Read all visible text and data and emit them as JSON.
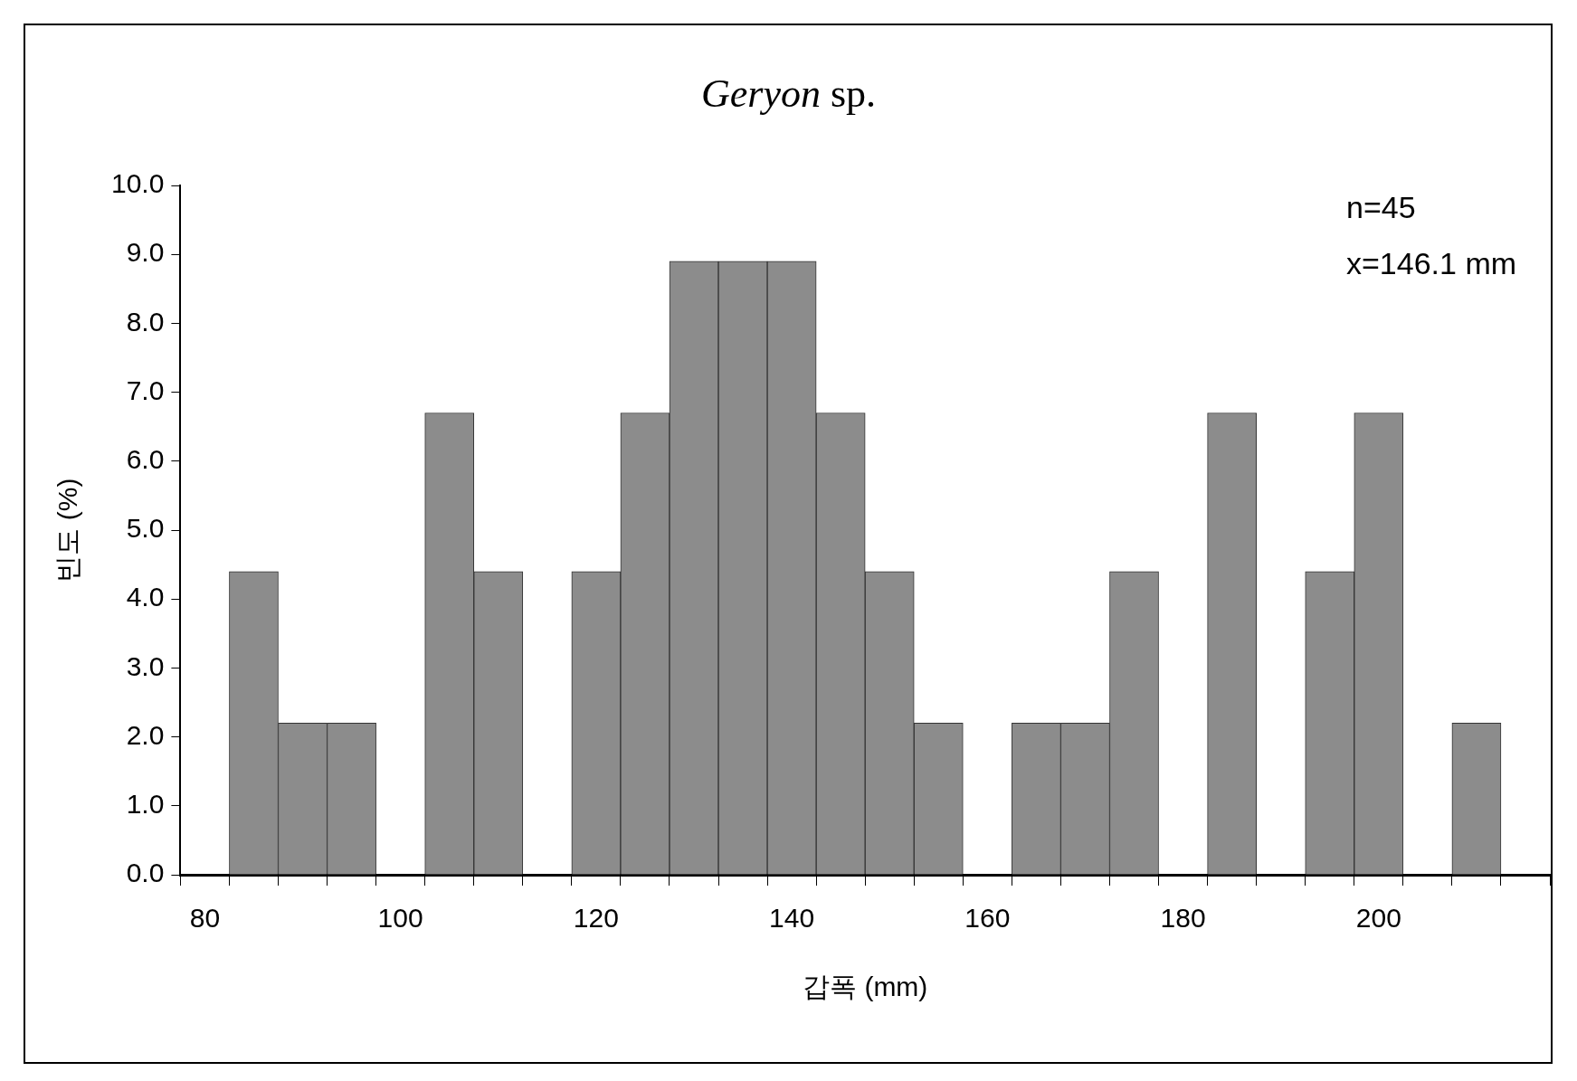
{
  "chart_data": {
    "type": "histogram",
    "title": "Geryon sp.",
    "xlabel": "갑폭 (mm)",
    "ylabel": "빈도 (%)",
    "bins": [
      82.5,
      87.5,
      92.5,
      97.5,
      102.5,
      107.5,
      112.5,
      117.5,
      122.5,
      127.5,
      132.5,
      137.5,
      142.5,
      147.5,
      152.5,
      157.5,
      162.5,
      167.5,
      172.5,
      177.5,
      182.5,
      187.5,
      192.5,
      197.5,
      202.5,
      207.5,
      212.5
    ],
    "values": [
      4.4,
      2.2,
      2.2,
      0,
      6.7,
      4.4,
      0,
      4.4,
      6.7,
      8.9,
      8.9,
      8.9,
      6.7,
      4.4,
      2.2,
      0,
      2.2,
      2.2,
      4.4,
      0,
      6.7,
      0,
      4.4,
      6.7,
      0,
      2.2
    ],
    "color": "#8c8c8c",
    "xlim": [
      77.5,
      217.5
    ],
    "xticks": [
      {
        "value": 77.5,
        "label": null
      },
      80,
      {
        "value": 82.5,
        "label": null
      },
      {
        "value": 87.5,
        "label": null
      },
      {
        "value": 92.5,
        "label": null
      },
      {
        "value": 97.5,
        "label": null
      },
      100,
      {
        "value": 102.5,
        "label": null
      },
      {
        "value": 107.5,
        "label": null
      },
      {
        "value": 112.5,
        "label": null
      },
      {
        "value": 117.5,
        "label": null
      },
      120,
      {
        "value": 122.5,
        "label": null
      },
      {
        "value": 127.5,
        "label": null
      },
      {
        "value": 132.5,
        "label": null
      },
      {
        "value": 137.5,
        "label": null
      },
      140,
      {
        "value": 142.5,
        "label": null
      },
      {
        "value": 147.5,
        "label": null
      },
      {
        "value": 152.5,
        "label": null
      },
      {
        "value": 157.5,
        "label": null
      },
      160,
      {
        "value": 162.5,
        "label": null
      },
      {
        "value": 167.5,
        "label": null
      },
      {
        "value": 172.5,
        "label": null
      },
      {
        "value": 177.5,
        "label": null
      },
      180,
      {
        "value": 182.5,
        "label": null
      },
      {
        "value": 187.5,
        "label": null
      },
      {
        "value": 192.5,
        "label": null
      },
      {
        "value": 197.5,
        "label": null
      },
      200,
      {
        "value": 202.5,
        "label": null
      },
      {
        "value": 207.5,
        "label": null
      },
      {
        "value": 212.5,
        "label": null
      },
      {
        "value": 217.5,
        "label": null
      }
    ],
    "ylim": [
      0,
      10
    ],
    "yticks": [
      {
        "value": 0,
        "label": "0.0"
      },
      {
        "value": 1,
        "label": "1.0"
      },
      {
        "value": 2,
        "label": "2.0"
      },
      {
        "value": 3,
        "label": "3.0"
      },
      {
        "value": 4,
        "label": "4.0"
      },
      {
        "value": 5,
        "label": "5.0"
      },
      {
        "value": 6,
        "label": "6.0"
      },
      {
        "value": 7,
        "label": "7.0"
      },
      {
        "value": 8,
        "label": "8.0"
      },
      {
        "value": 9,
        "label": "9.0"
      },
      {
        "value": 10,
        "label": "10.0"
      }
    ],
    "grid": false,
    "legend": false,
    "annotations": [
      "n=45",
      "x=146.1 mm"
    ]
  }
}
